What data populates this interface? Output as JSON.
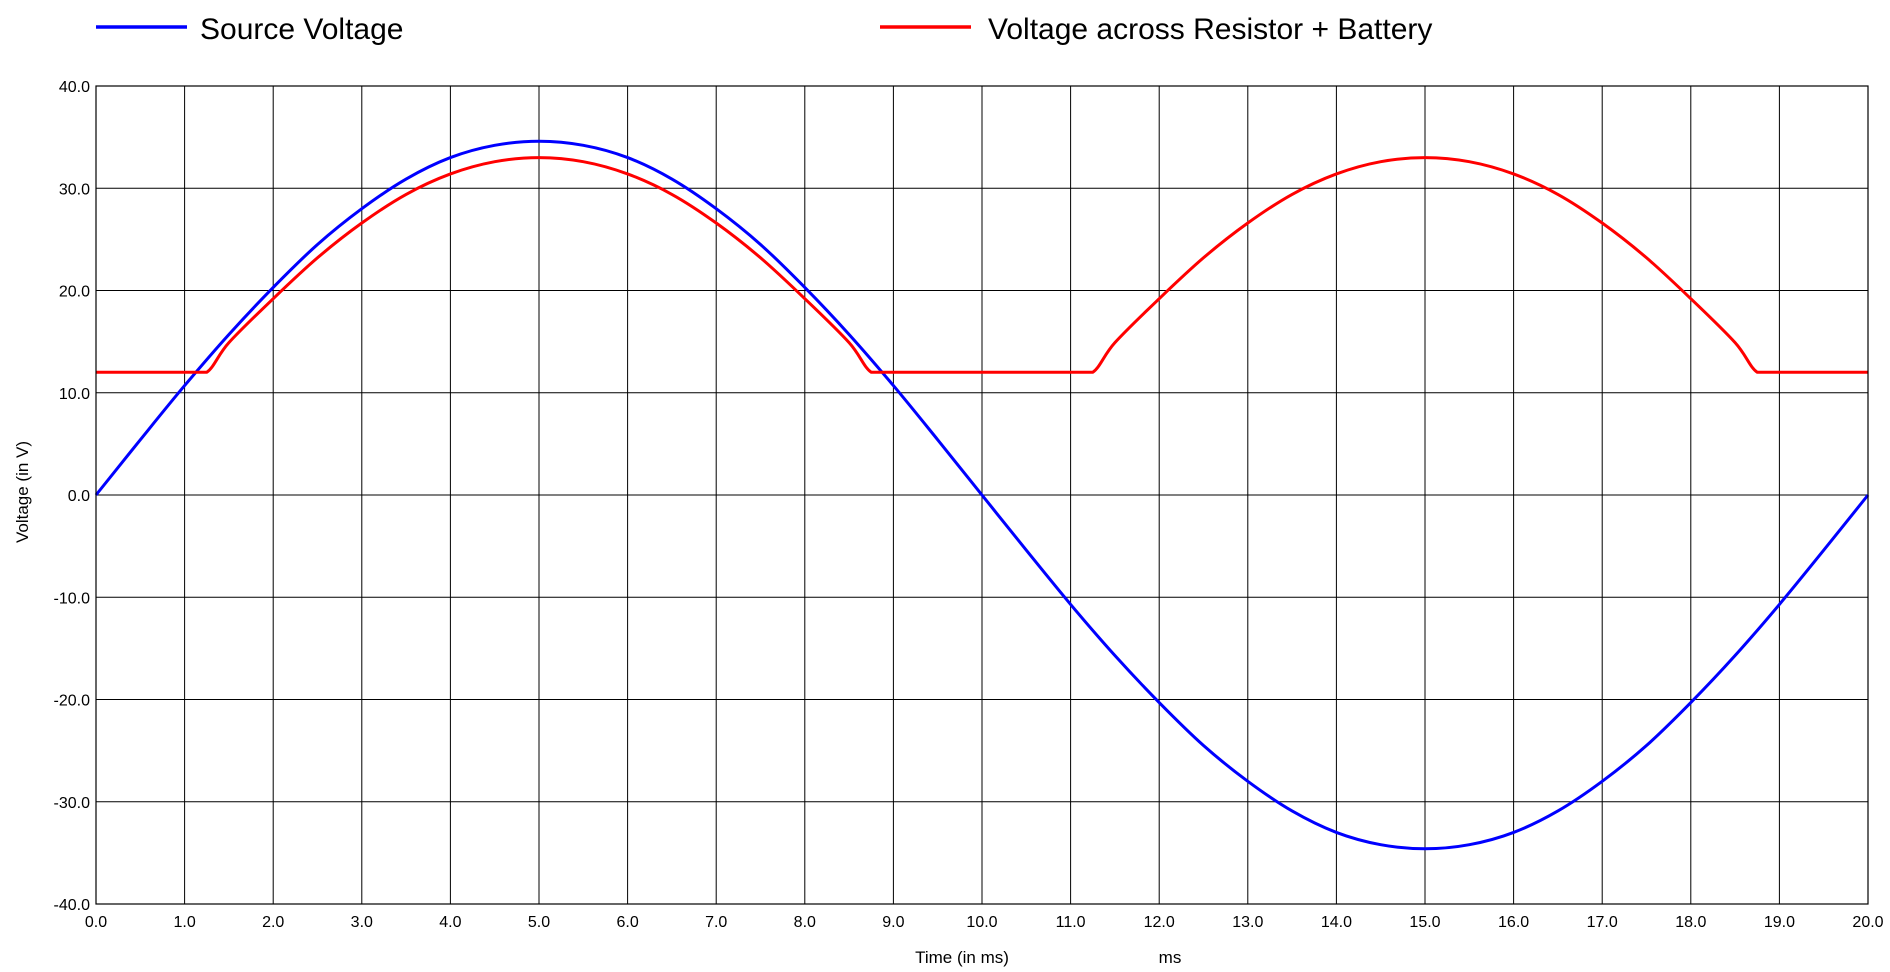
{
  "chart_data": {
    "type": "line",
    "xlabel": "Time (in ms)",
    "x_unit_label": "ms",
    "ylabel": "Voltage (in V)",
    "xlim": [
      0,
      20
    ],
    "ylim": [
      -40,
      40
    ],
    "x_ticks": [
      "0.0",
      "1.0",
      "2.0",
      "3.0",
      "4.0",
      "5.0",
      "6.0",
      "7.0",
      "8.0",
      "9.0",
      "10.0",
      "11.0",
      "12.0",
      "13.0",
      "14.0",
      "15.0",
      "16.0",
      "17.0",
      "18.0",
      "19.0",
      "20.0"
    ],
    "y_ticks": [
      "40.0",
      "30.0",
      "20.0",
      "10.0",
      "0.0",
      "-10.0",
      "-20.0",
      "-30.0",
      "-40.0"
    ],
    "grid": true,
    "legend_position": "top",
    "series": [
      {
        "name": "Source Voltage",
        "color": "#0000ff",
        "x": [
          0,
          0.5,
          1,
          1.5,
          2,
          2.5,
          3,
          3.5,
          4,
          4.5,
          5,
          5.5,
          6,
          6.5,
          7,
          7.5,
          8,
          8.5,
          9,
          9.5,
          10,
          10.5,
          11,
          11.5,
          12,
          12.5,
          13,
          13.5,
          14,
          14.5,
          15,
          15.5,
          16,
          16.5,
          17,
          17.5,
          18,
          18.5,
          19,
          19.5,
          20
        ],
        "y": [
          0,
          5.4,
          10.7,
          15.7,
          20.3,
          24.5,
          28.0,
          30.9,
          33.0,
          34.2,
          34.6,
          34.2,
          33.0,
          30.9,
          28.0,
          24.5,
          20.3,
          15.7,
          10.7,
          5.4,
          0,
          -5.4,
          -10.7,
          -15.7,
          -20.3,
          -24.5,
          -28.0,
          -30.9,
          -33.0,
          -34.2,
          -34.6,
          -34.2,
          -33.0,
          -30.9,
          -28.0,
          -24.5,
          -20.3,
          -15.7,
          -10.7,
          -5.4,
          0
        ]
      },
      {
        "name": "Voltage across Resistor + Battery",
        "color": "#ff0000",
        "x": [
          0,
          1.0,
          1.25,
          1.5,
          2,
          2.5,
          3,
          3.5,
          4,
          4.5,
          5,
          5.5,
          6,
          6.5,
          7,
          7.5,
          8,
          8.5,
          8.75,
          9,
          10,
          11,
          11.25,
          11.5,
          12,
          12.5,
          13,
          13.5,
          14,
          14.5,
          15,
          15.5,
          16,
          16.5,
          17,
          17.5,
          18,
          18.5,
          18.75,
          19,
          20
        ],
        "y": [
          12.0,
          12.0,
          12.0,
          14.9,
          19.2,
          23.2,
          26.6,
          29.4,
          31.4,
          32.6,
          33.0,
          32.6,
          31.4,
          29.4,
          26.6,
          23.2,
          19.2,
          14.9,
          12.0,
          12.0,
          12.0,
          12.0,
          12.0,
          14.9,
          19.2,
          23.2,
          26.6,
          29.4,
          31.4,
          32.6,
          33.0,
          32.6,
          31.4,
          29.4,
          26.6,
          23.2,
          19.2,
          14.9,
          12.0,
          12.0,
          12.0
        ]
      }
    ]
  }
}
